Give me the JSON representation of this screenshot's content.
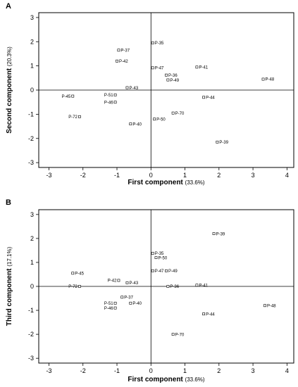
{
  "figure": {
    "panel_labels": [
      "A",
      "B"
    ]
  },
  "chart_data": [
    {
      "type": "scatter",
      "panel": "A",
      "xlabel": "First component",
      "xlabel_note": "(33.6%)",
      "ylabel": "Second component",
      "ylabel_note": "(20.3%)",
      "xlim": [
        -3.3,
        4.2
      ],
      "ylim": [
        -3.2,
        3.2
      ],
      "xticks": [
        -3,
        -2,
        -1,
        0,
        1,
        2,
        3,
        4
      ],
      "yticks": [
        -3,
        -2,
        -1,
        0,
        1,
        2,
        3
      ],
      "zero_lines": true,
      "points": [
        {
          "label": "P-35",
          "x": 0.05,
          "y": 1.95
        },
        {
          "label": "P-37",
          "x": -0.95,
          "y": 1.65
        },
        {
          "label": "P-42",
          "x": -1.0,
          "y": 1.2
        },
        {
          "label": "P-47",
          "x": 0.05,
          "y": 0.92
        },
        {
          "label": "P-41",
          "x": 1.35,
          "y": 0.95
        },
        {
          "label": "P-36",
          "x": 0.45,
          "y": 0.62
        },
        {
          "label": "P-49",
          "x": 0.5,
          "y": 0.42
        },
        {
          "label": "P-48",
          "x": 3.3,
          "y": 0.45
        },
        {
          "label": "P-43",
          "x": -0.7,
          "y": 0.1
        },
        {
          "label": "P-45",
          "x": -2.3,
          "y": -0.25
        },
        {
          "label": "P-51",
          "x": -1.05,
          "y": -0.2
        },
        {
          "label": "P-46",
          "x": -1.05,
          "y": -0.5
        },
        {
          "label": "P-44",
          "x": 1.55,
          "y": -0.3
        },
        {
          "label": "P-72",
          "x": -2.1,
          "y": -1.1
        },
        {
          "label": "P-70",
          "x": 0.65,
          "y": -0.95
        },
        {
          "label": "P-50",
          "x": 0.1,
          "y": -1.2
        },
        {
          "label": "P-40",
          "x": -0.6,
          "y": -1.4
        },
        {
          "label": "P-39",
          "x": 1.95,
          "y": -2.15
        }
      ]
    },
    {
      "type": "scatter",
      "panel": "B",
      "xlabel": "First component",
      "xlabel_note": "(33.6%)",
      "ylabel": "Third component",
      "ylabel_note": "(17.1%)",
      "xlim": [
        -3.3,
        4.2
      ],
      "ylim": [
        -3.2,
        3.2
      ],
      "xticks": [
        -3,
        -2,
        -1,
        0,
        1,
        2,
        3,
        4
      ],
      "yticks": [
        -3,
        -2,
        -1,
        0,
        1,
        2,
        3
      ],
      "zero_lines": true,
      "points": [
        {
          "label": "P-39",
          "x": 1.85,
          "y": 2.2
        },
        {
          "label": "P-35",
          "x": 0.05,
          "y": 1.38
        },
        {
          "label": "P-50",
          "x": 0.15,
          "y": 1.2
        },
        {
          "label": "P-47",
          "x": 0.05,
          "y": 0.65
        },
        {
          "label": "P-49",
          "x": 0.45,
          "y": 0.65
        },
        {
          "label": "P-45",
          "x": -2.3,
          "y": 0.55
        },
        {
          "label": "P-42",
          "x": -0.95,
          "y": 0.25
        },
        {
          "label": "P-43",
          "x": -0.7,
          "y": 0.15
        },
        {
          "label": "P-41",
          "x": 1.35,
          "y": 0.05
        },
        {
          "label": "P-72",
          "x": -2.1,
          "y": 0.0
        },
        {
          "label": "P-36",
          "x": 0.5,
          "y": 0.0
        },
        {
          "label": "P-37",
          "x": -0.85,
          "y": -0.45
        },
        {
          "label": "P-51",
          "x": -1.05,
          "y": -0.7
        },
        {
          "label": "P-40",
          "x": -0.6,
          "y": -0.7
        },
        {
          "label": "P-46",
          "x": -1.05,
          "y": -0.9
        },
        {
          "label": "P-48",
          "x": 3.35,
          "y": -0.8
        },
        {
          "label": "P-44",
          "x": 1.55,
          "y": -1.15
        },
        {
          "label": "P-70",
          "x": 0.65,
          "y": -2.0
        }
      ]
    }
  ]
}
